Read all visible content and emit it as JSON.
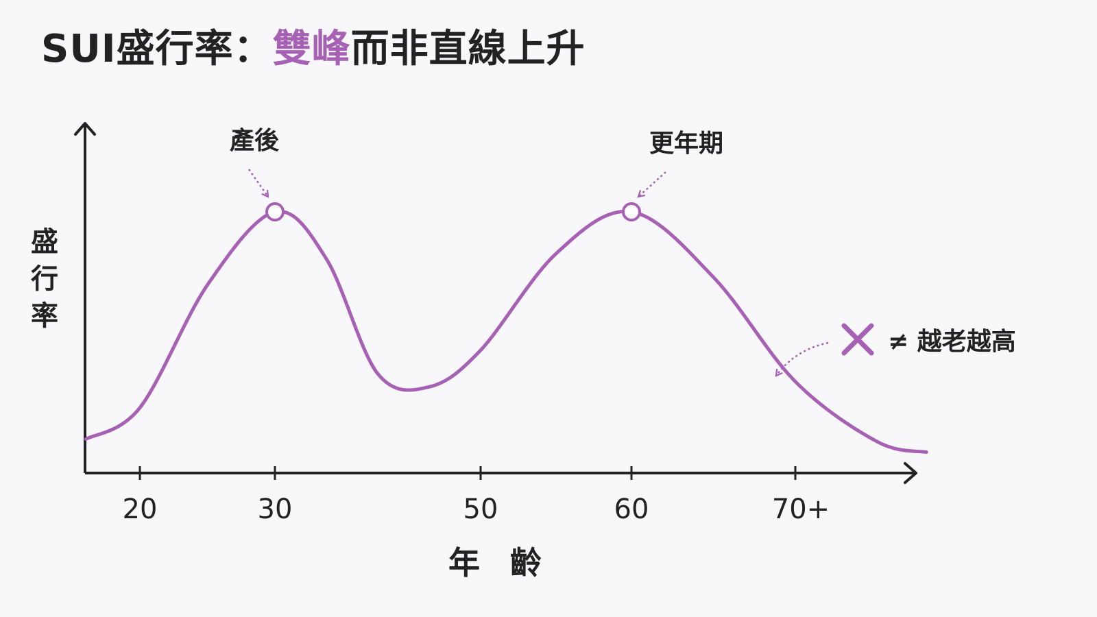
{
  "title": {
    "prefix": "SUI盛行率：",
    "highlight": "雙峰",
    "suffix": "而非直線上升"
  },
  "colors": {
    "accent": "#a660b4",
    "ink": "#222222",
    "background": "#f8f7f9"
  },
  "chart_data": {
    "type": "line",
    "ylabel": "盛行率",
    "xlabel": "年 齡",
    "x_ticks": [
      {
        "value": 20,
        "label": "20"
      },
      {
        "value": 30,
        "label": "30"
      },
      {
        "value": 50,
        "label": "50"
      },
      {
        "value": 60,
        "label": "60"
      },
      {
        "value": 70,
        "label": "70+"
      }
    ],
    "series": [
      {
        "x": [
          16,
          20,
          25,
          30,
          35,
          40,
          45,
          50,
          55,
          60,
          65,
          70,
          75,
          78
        ],
        "y": [
          0.13,
          0.25,
          0.72,
          1.0,
          0.82,
          0.38,
          0.33,
          0.47,
          0.84,
          1.0,
          0.75,
          0.35,
          0.12,
          0.08
        ]
      }
    ],
    "peaks": [
      {
        "x": 30,
        "label": "產後"
      },
      {
        "x": 60,
        "label": "更年期"
      }
    ],
    "axis_ticks_shown": false,
    "grid": false
  },
  "note": {
    "icon": "cross-icon",
    "text": "≠ 越老越高"
  }
}
